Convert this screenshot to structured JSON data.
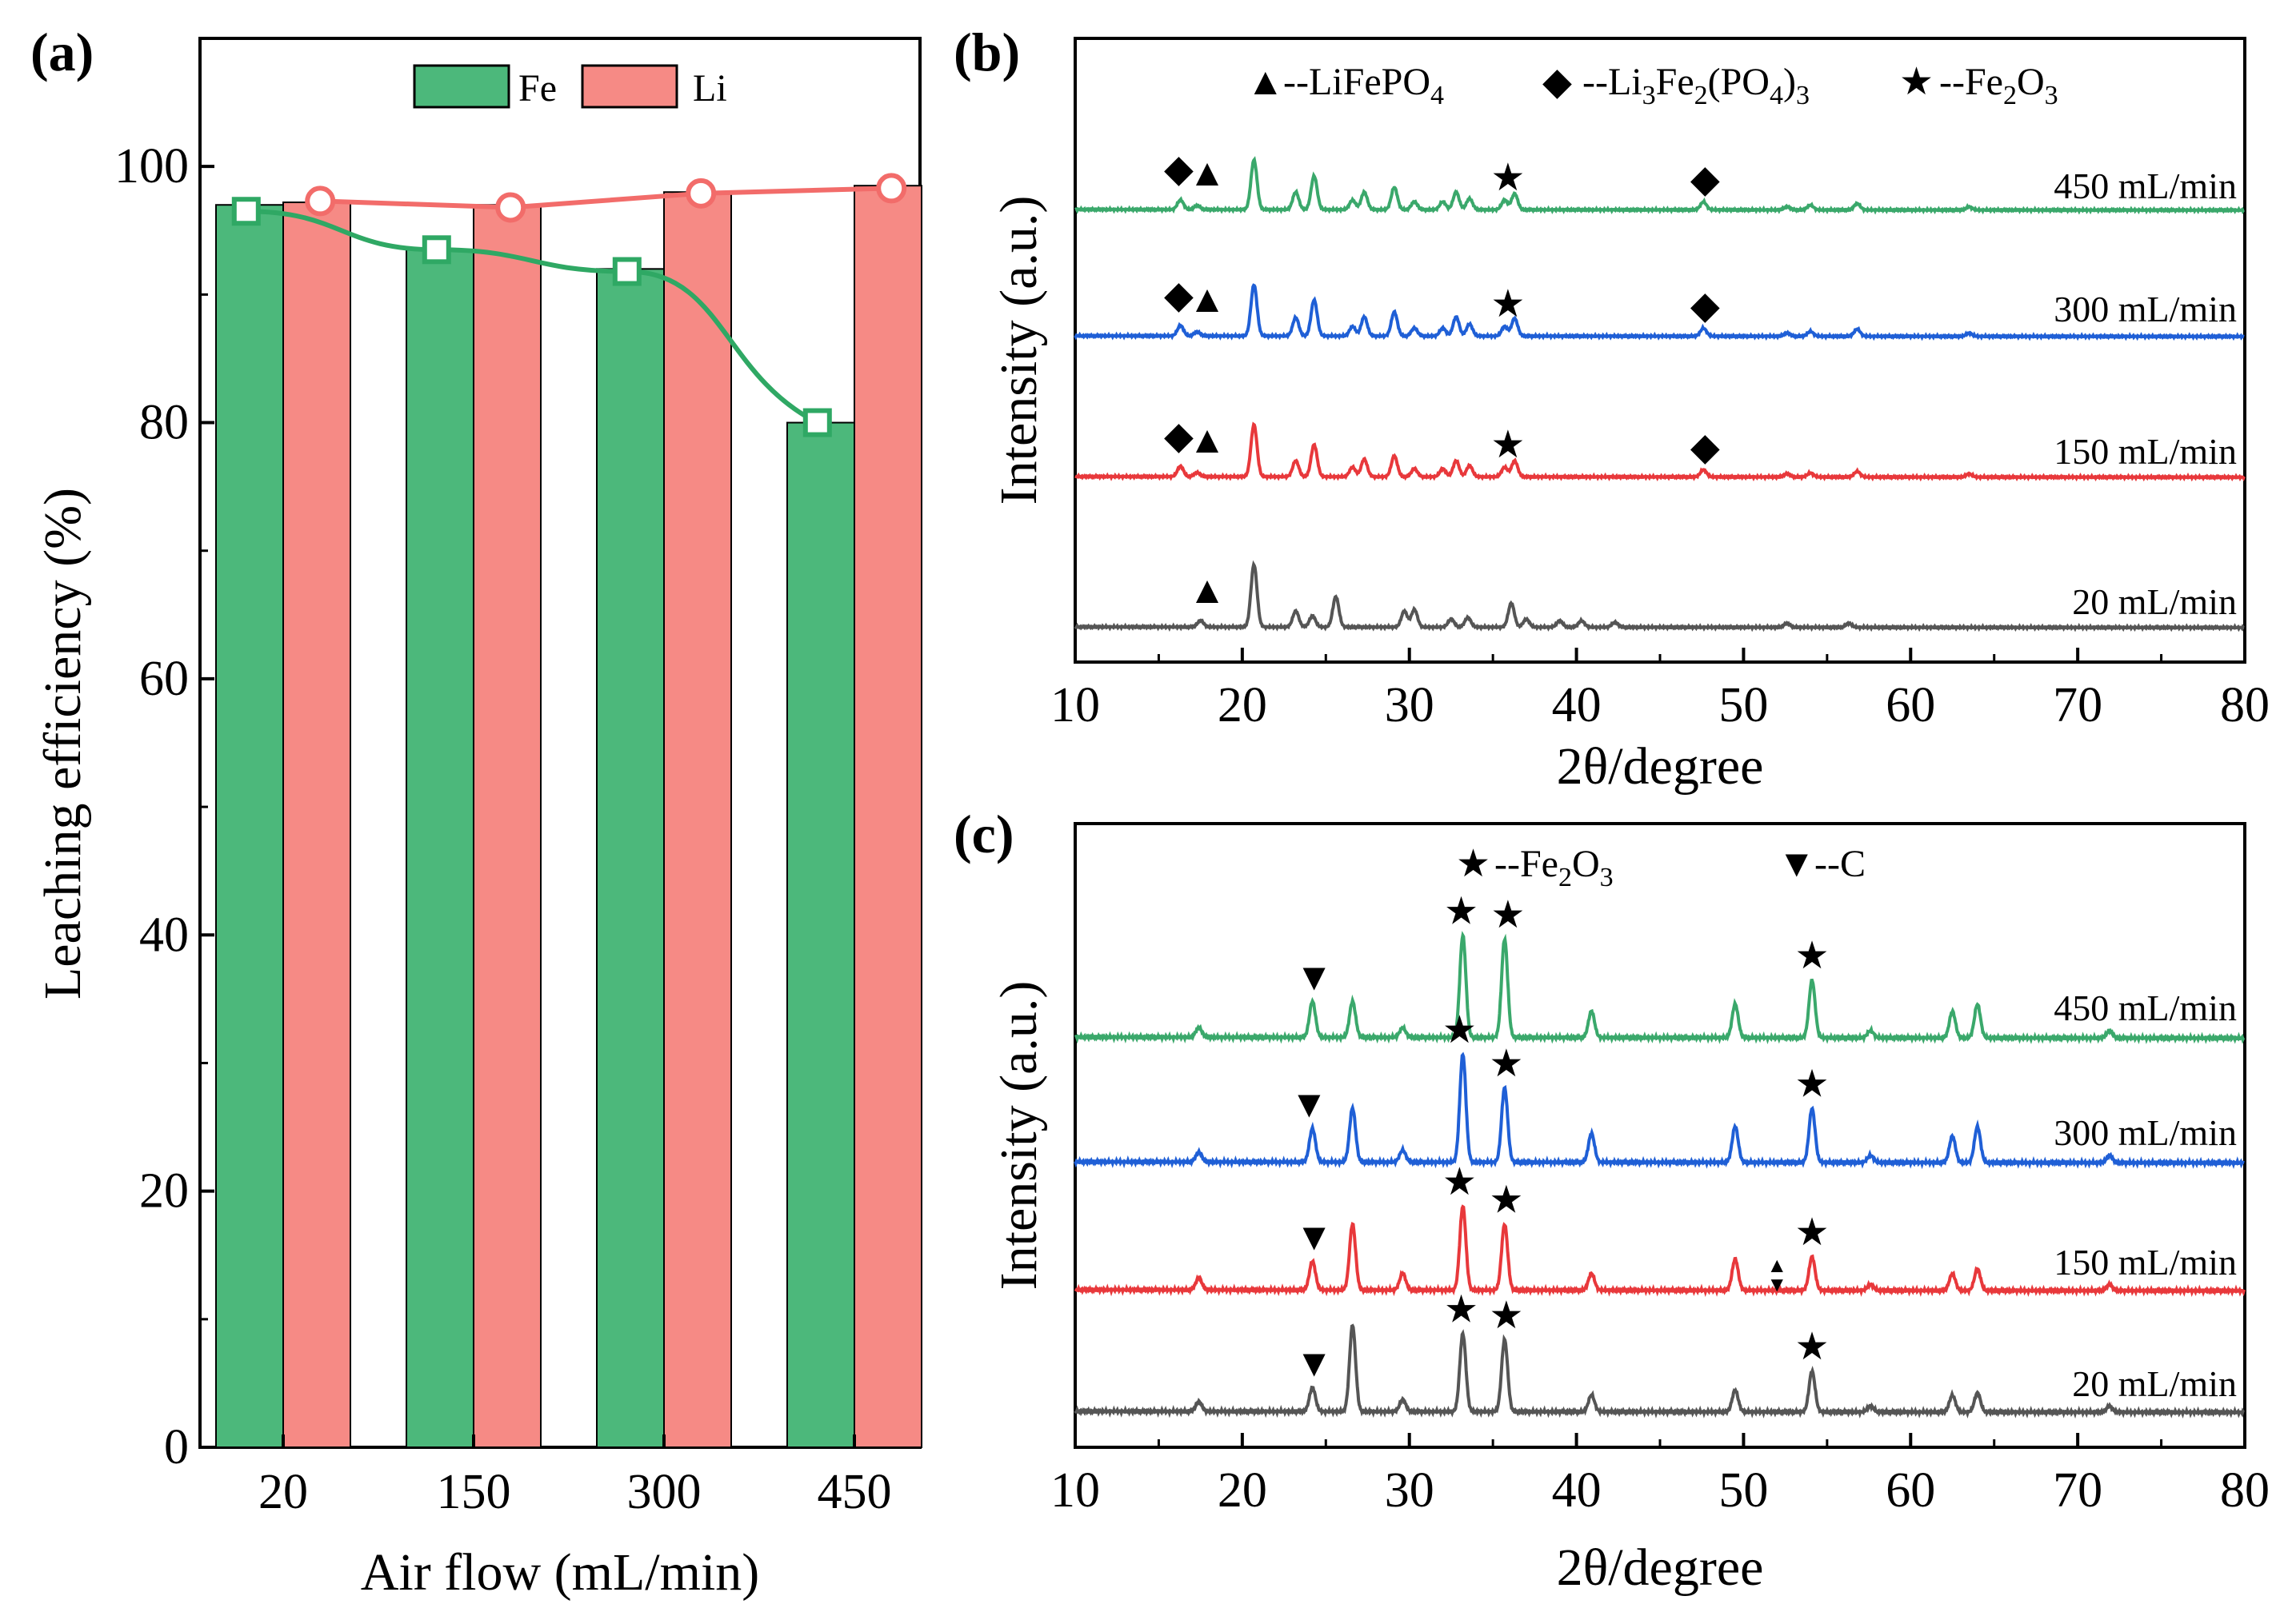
{
  "figure": {
    "panels": [
      {
        "id": "a",
        "label": "(a)"
      },
      {
        "id": "b",
        "label": "(b)"
      },
      {
        "id": "c",
        "label": "(c)"
      }
    ]
  },
  "chart_data": [
    {
      "panel": "a",
      "type": "bar",
      "title": "",
      "xlabel": "Air flow (mL/min)",
      "ylabel": "Leaching efficiency (%)",
      "categories": [
        "20",
        "150",
        "300",
        "450"
      ],
      "ylim": [
        0,
        110
      ],
      "yticks": [
        0,
        20,
        40,
        60,
        80,
        100
      ],
      "series": [
        {
          "name": "Fe",
          "color": "#4cb87b",
          "values": [
            97.0,
            93.5,
            92.0,
            80.0
          ],
          "line_values": [
            96.5,
            93.5,
            91.8,
            80.0
          ]
        },
        {
          "name": "Li",
          "color": "#f68a85",
          "values": [
            97.2,
            97.0,
            98.0,
            98.5
          ],
          "line_values": [
            97.3,
            96.8,
            97.9,
            98.3
          ]
        }
      ],
      "legend": [
        "Fe",
        "Li"
      ]
    },
    {
      "panel": "b",
      "type": "line",
      "xlabel": "2θ/degree",
      "ylabel": "Intensity (a.u.)",
      "xlim": [
        10,
        80
      ],
      "xticks": [
        10,
        20,
        30,
        40,
        50,
        60,
        70,
        80
      ],
      "legend": [
        {
          "symbol": "▲",
          "text": "--LiFePO",
          "sub": "4"
        },
        {
          "symbol": "◆",
          "text": "--Li",
          "sub1": "3",
          "mid": "Fe",
          "sub2": "2",
          "tail": "(PO",
          "sub3": "4",
          "end": ")",
          "sub4": "3"
        },
        {
          "symbol": "★",
          "text": "--Fe",
          "sub1": "2",
          "mid": "O",
          "sub2": "3"
        }
      ],
      "series": [
        {
          "name": "450 mL/min",
          "color": "#3aa86b",
          "peaks": [
            [
              16.3,
              0.12
            ],
            [
              17.3,
              0.05
            ],
            [
              20.7,
              0.62
            ],
            [
              23.2,
              0.22
            ],
            [
              24.3,
              0.42
            ],
            [
              26.6,
              0.12
            ],
            [
              27.3,
              0.22
            ],
            [
              29.1,
              0.28
            ],
            [
              30.3,
              0.1
            ],
            [
              32.0,
              0.1
            ],
            [
              32.8,
              0.22
            ],
            [
              33.6,
              0.14
            ],
            [
              35.7,
              0.12
            ],
            [
              36.3,
              0.2
            ],
            [
              47.6,
              0.1
            ],
            [
              52.6,
              0.04
            ],
            [
              54.0,
              0.06
            ],
            [
              56.8,
              0.08
            ],
            [
              63.5,
              0.04
            ]
          ],
          "markers": [
            {
              "symbol": "◆",
              "x": 16.2
            },
            {
              "symbol": "▲",
              "x": 17.9
            },
            {
              "symbol": "★",
              "x": 35.9
            },
            {
              "symbol": "◆",
              "x": 47.7
            }
          ]
        },
        {
          "name": "300 mL/min",
          "color": "#1f5fd6",
          "peaks": [
            [
              16.3,
              0.13
            ],
            [
              17.3,
              0.05
            ],
            [
              20.7,
              0.64
            ],
            [
              23.2,
              0.23
            ],
            [
              24.3,
              0.45
            ],
            [
              26.6,
              0.12
            ],
            [
              27.3,
              0.24
            ],
            [
              29.1,
              0.3
            ],
            [
              30.3,
              0.1
            ],
            [
              32.0,
              0.1
            ],
            [
              32.8,
              0.24
            ],
            [
              33.6,
              0.15
            ],
            [
              35.7,
              0.12
            ],
            [
              36.3,
              0.22
            ],
            [
              47.6,
              0.1
            ],
            [
              52.6,
              0.04
            ],
            [
              54.0,
              0.06
            ],
            [
              56.8,
              0.09
            ],
            [
              63.5,
              0.04
            ]
          ],
          "markers": [
            {
              "symbol": "◆",
              "x": 16.2
            },
            {
              "symbol": "▲",
              "x": 17.9
            },
            {
              "symbol": "★",
              "x": 35.9
            },
            {
              "symbol": "◆",
              "x": 47.7
            }
          ]
        },
        {
          "name": "150 mL/min",
          "color": "#e8383b",
          "peaks": [
            [
              16.3,
              0.13
            ],
            [
              17.3,
              0.05
            ],
            [
              20.7,
              0.65
            ],
            [
              23.2,
              0.2
            ],
            [
              24.3,
              0.4
            ],
            [
              26.6,
              0.12
            ],
            [
              27.3,
              0.22
            ],
            [
              29.1,
              0.26
            ],
            [
              30.3,
              0.1
            ],
            [
              32.0,
              0.1
            ],
            [
              32.8,
              0.2
            ],
            [
              33.6,
              0.14
            ],
            [
              35.7,
              0.12
            ],
            [
              36.3,
              0.2
            ],
            [
              47.6,
              0.09
            ],
            [
              52.6,
              0.04
            ],
            [
              54.0,
              0.05
            ],
            [
              56.8,
              0.07
            ],
            [
              63.5,
              0.04
            ]
          ],
          "markers": [
            {
              "symbol": "◆",
              "x": 16.2
            },
            {
              "symbol": "▲",
              "x": 17.9
            },
            {
              "symbol": "★",
              "x": 35.9
            },
            {
              "symbol": "◆",
              "x": 47.7
            }
          ]
        },
        {
          "name": "20 mL/min",
          "color": "#555555",
          "peaks": [
            [
              17.5,
              0.08
            ],
            [
              20.7,
              0.78
            ],
            [
              23.2,
              0.2
            ],
            [
              24.2,
              0.14
            ],
            [
              25.6,
              0.38
            ],
            [
              29.7,
              0.2
            ],
            [
              30.3,
              0.22
            ],
            [
              32.5,
              0.1
            ],
            [
              33.5,
              0.12
            ],
            [
              36.1,
              0.3
            ],
            [
              37.0,
              0.1
            ],
            [
              39.0,
              0.08
            ],
            [
              40.3,
              0.08
            ],
            [
              42.3,
              0.06
            ],
            [
              52.6,
              0.05
            ],
            [
              56.3,
              0.05
            ]
          ],
          "markers": [
            {
              "symbol": "▲",
              "x": 17.9
            }
          ]
        }
      ]
    },
    {
      "panel": "c",
      "type": "line",
      "xlabel": "2θ/degree",
      "ylabel": "Intensity (a.u.)",
      "xlim": [
        10,
        80
      ],
      "xticks": [
        10,
        20,
        30,
        40,
        50,
        60,
        70,
        80
      ],
      "legend": [
        {
          "symbol": "★",
          "text": "--Fe",
          "sub1": "2",
          "mid": "O",
          "sub2": "3"
        },
        {
          "symbol": "▼",
          "text": "--C"
        }
      ],
      "series": [
        {
          "name": "450 mL/min",
          "color": "#3aa86b",
          "peaks": [
            [
              17.4,
              0.08
            ],
            [
              24.2,
              0.3
            ],
            [
              26.6,
              0.3
            ],
            [
              29.6,
              0.08
            ],
            [
              33.2,
              0.85
            ],
            [
              35.7,
              0.82
            ],
            [
              40.9,
              0.22
            ],
            [
              49.5,
              0.28
            ],
            [
              54.1,
              0.48
            ],
            [
              57.6,
              0.06
            ],
            [
              62.5,
              0.22
            ],
            [
              64.0,
              0.28
            ],
            [
              71.9,
              0.06
            ]
          ],
          "markers": [
            {
              "symbol": "▼",
              "x": 24.3
            },
            {
              "symbol": "★",
              "x": 33.1
            },
            {
              "symbol": "★",
              "x": 35.9
            },
            {
              "symbol": "★",
              "x": 54.1
            }
          ]
        },
        {
          "name": "300 mL/min",
          "color": "#1f5fd6",
          "peaks": [
            [
              17.4,
              0.08
            ],
            [
              24.2,
              0.28
            ],
            [
              26.6,
              0.45
            ],
            [
              29.6,
              0.1
            ],
            [
              33.2,
              0.9
            ],
            [
              35.7,
              0.62
            ],
            [
              40.9,
              0.24
            ],
            [
              49.5,
              0.3
            ],
            [
              54.1,
              0.45
            ],
            [
              57.6,
              0.06
            ],
            [
              62.5,
              0.22
            ],
            [
              64.0,
              0.3
            ],
            [
              71.9,
              0.06
            ]
          ],
          "markers": [
            {
              "symbol": "▼",
              "x": 24.0
            },
            {
              "symbol": "★",
              "x": 33.0
            },
            {
              "symbol": "★",
              "x": 35.8
            },
            {
              "symbol": "★",
              "x": 54.1
            }
          ]
        },
        {
          "name": "150 mL/min",
          "color": "#e8383b",
          "peaks": [
            [
              17.4,
              0.1
            ],
            [
              24.2,
              0.24
            ],
            [
              26.6,
              0.55
            ],
            [
              29.6,
              0.14
            ],
            [
              33.2,
              0.7
            ],
            [
              35.7,
              0.55
            ],
            [
              40.9,
              0.14
            ],
            [
              49.5,
              0.26
            ],
            [
              54.1,
              0.28
            ],
            [
              57.6,
              0.05
            ],
            [
              62.5,
              0.14
            ],
            [
              64.0,
              0.18
            ],
            [
              71.9,
              0.05
            ]
          ],
          "markers": [
            {
              "symbol": "▼",
              "x": 24.3
            },
            {
              "symbol": "★",
              "x": 33.0
            },
            {
              "symbol": "★",
              "x": 35.8
            },
            {
              "symbol": "★",
              "x": 54.1
            },
            {
              "symbol": "▲▼",
              "x": 52.0
            }
          ]
        },
        {
          "name": "20 mL/min",
          "color": "#555555",
          "peaks": [
            [
              17.4,
              0.08
            ],
            [
              24.2,
              0.2
            ],
            [
              26.6,
              0.72
            ],
            [
              29.6,
              0.1
            ],
            [
              33.2,
              0.65
            ],
            [
              35.7,
              0.6
            ],
            [
              40.9,
              0.14
            ],
            [
              49.5,
              0.18
            ],
            [
              54.1,
              0.34
            ],
            [
              57.6,
              0.05
            ],
            [
              62.5,
              0.14
            ],
            [
              64.0,
              0.16
            ],
            [
              71.9,
              0.05
            ]
          ],
          "markers": [
            {
              "symbol": "▼",
              "x": 24.3
            },
            {
              "symbol": "★",
              "x": 33.1
            },
            {
              "symbol": "★",
              "x": 35.8
            },
            {
              "symbol": "★",
              "x": 54.1
            }
          ]
        }
      ]
    }
  ]
}
